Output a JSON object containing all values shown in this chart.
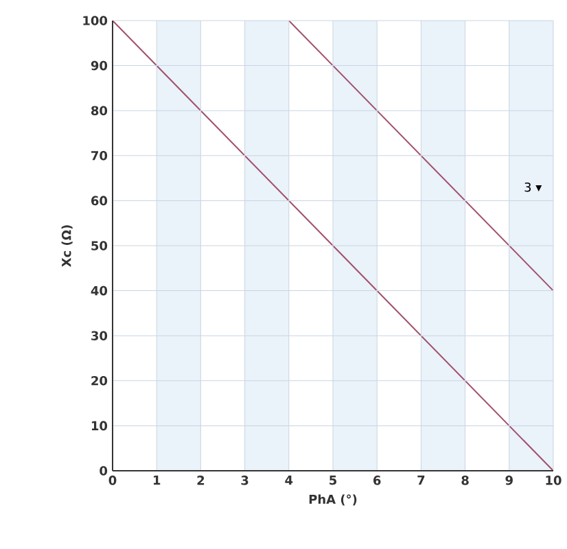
{
  "chart_data": {
    "type": "line",
    "xlabel": "PhA (°)",
    "ylabel": "Xc (Ω)",
    "series": [
      {
        "x": [
          0,
          10
        ],
        "values": [
          100,
          0
        ],
        "color": "#a0506a"
      },
      {
        "x": [
          4,
          10
        ],
        "values": [
          100,
          40
        ],
        "color": "#a0506a"
      }
    ],
    "xlim": [
      0,
      10
    ],
    "ylim": [
      0,
      100
    ],
    "xticks": [
      0,
      1,
      2,
      3,
      4,
      5,
      6,
      7,
      8,
      9,
      10
    ],
    "yticks": [
      0,
      10,
      20,
      30,
      40,
      50,
      60,
      70,
      80,
      90,
      100
    ],
    "grid": true,
    "marker": "none",
    "line_style": "solid",
    "bands": [
      {
        "axis": "x",
        "from": 1,
        "to": 2,
        "color": "#eaf2fa"
      },
      {
        "axis": "x",
        "from": 3,
        "to": 4,
        "color": "#eaf2fa"
      },
      {
        "axis": "x",
        "from": 5,
        "to": 6,
        "color": "#eaf2fa"
      },
      {
        "axis": "x",
        "from": 7,
        "to": 8,
        "color": "#eaf2fa"
      },
      {
        "axis": "x",
        "from": 9,
        "to": 10,
        "color": "#eaf2fa"
      }
    ],
    "annotations": [
      "3 ▾"
    ]
  }
}
